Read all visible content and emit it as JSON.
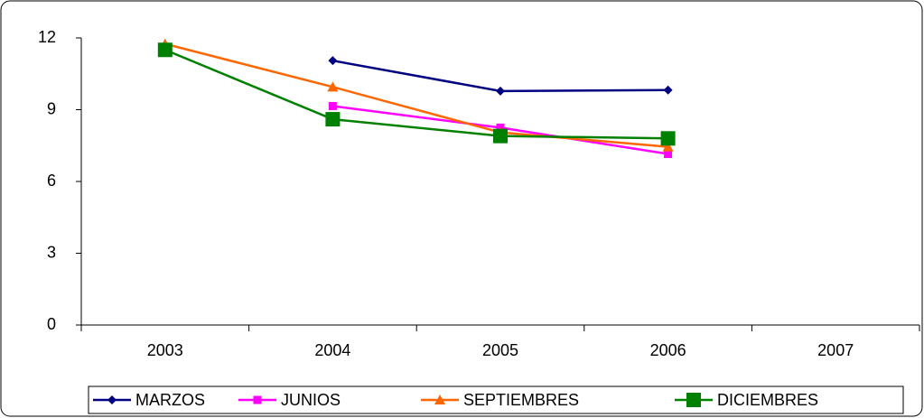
{
  "chart_data": {
    "type": "line",
    "categories": [
      "2003",
      "2004",
      "2005",
      "2006",
      "2007"
    ],
    "series": [
      {
        "name": "MARZOS",
        "color": "#000080",
        "marker": "diamond",
        "values": [
          null,
          11.05,
          9.78,
          9.82,
          null
        ]
      },
      {
        "name": "JUNIOS",
        "color": "#ff00ff",
        "marker": "square",
        "values": [
          null,
          9.15,
          8.25,
          7.15,
          null
        ]
      },
      {
        "name": "SEPTIEMBRES",
        "color": "#ff6600",
        "marker": "triangle",
        "values": [
          11.75,
          9.95,
          8.05,
          7.45,
          null
        ]
      },
      {
        "name": "DICIEMBRES",
        "color": "#008000",
        "marker": "big-square",
        "values": [
          11.5,
          8.6,
          7.9,
          7.8,
          null
        ]
      }
    ],
    "ylim": [
      0,
      12
    ],
    "yticks": [
      0,
      3,
      6,
      9,
      12
    ],
    "grid": false,
    "legend": "bottom"
  }
}
